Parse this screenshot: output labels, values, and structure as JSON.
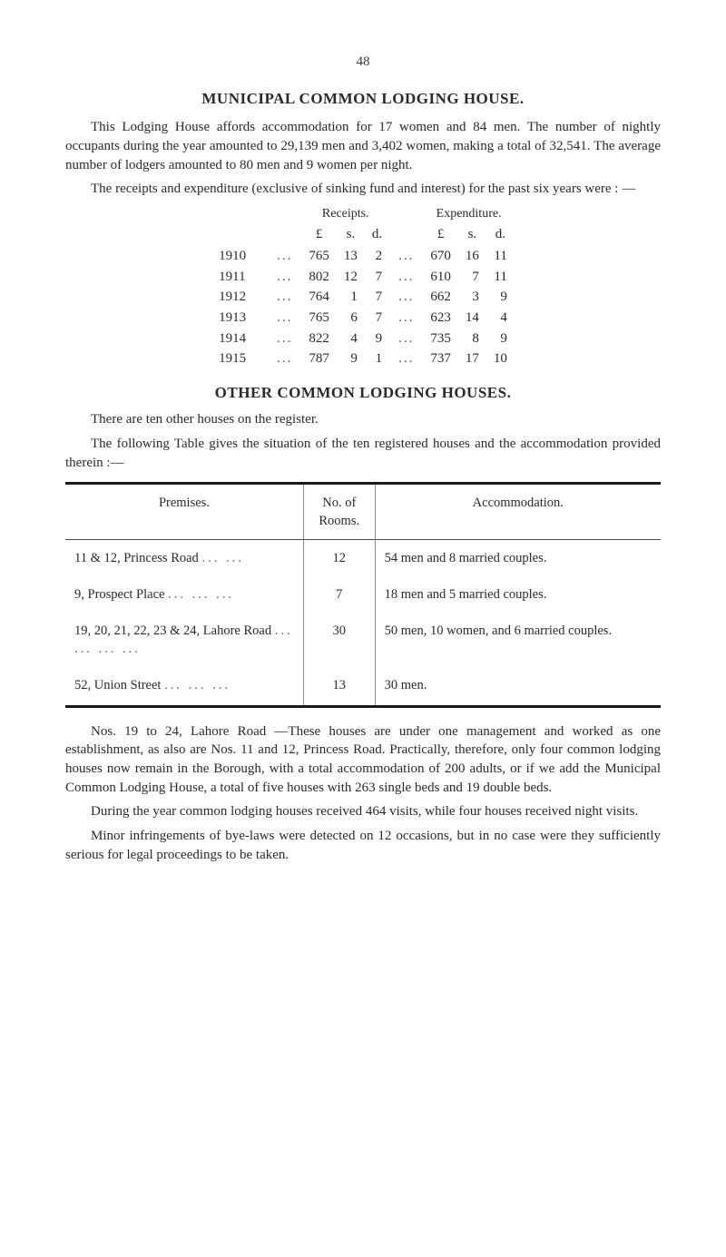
{
  "page": {
    "number": "48"
  },
  "heading1": "MUNICIPAL COMMON LODGING HOUSE.",
  "para1": "This Lodging House affords accommodation for 17 women and 84 men. The number of nightly occupants during the year amounted to 29,139 men and 3,402 women, making a total of 32,541. The average number of lodgers amounted to 80 men and 9 women per night.",
  "para2": "The receipts and expenditure (exclusive of sinking fund and interest) for the past six years were : —",
  "rx": {
    "head_receipts": "Receipts.",
    "head_expenditure": "Expenditure.",
    "unit_L": "£",
    "unit_s": "s.",
    "unit_d": "d.",
    "rows": [
      {
        "year": "1910",
        "rL": "765",
        "rs": "13",
        "rd": "2",
        "eL": "670",
        "es": "16",
        "ed": "11"
      },
      {
        "year": "1911",
        "rL": "802",
        "rs": "12",
        "rd": "7",
        "eL": "610",
        "es": "7",
        "ed": "11"
      },
      {
        "year": "1912",
        "rL": "764",
        "rs": "1",
        "rd": "7",
        "eL": "662",
        "es": "3",
        "ed": "9"
      },
      {
        "year": "1913",
        "rL": "765",
        "rs": "6",
        "rd": "7",
        "eL": "623",
        "es": "14",
        "ed": "4"
      },
      {
        "year": "1914",
        "rL": "822",
        "rs": "4",
        "rd": "9",
        "eL": "735",
        "es": "8",
        "ed": "9"
      },
      {
        "year": "1915",
        "rL": "787",
        "rs": "9",
        "rd": "1",
        "eL": "737",
        "es": "17",
        "ed": "10"
      }
    ]
  },
  "heading2": "OTHER COMMON LODGING HOUSES.",
  "para3": "There are ten other houses on the register.",
  "para4": "The following Table gives the situation of the ten registered houses and the accommodation provided therein :—",
  "premises": {
    "head_prem": "Premises.",
    "head_rooms": "No. of Rooms.",
    "head_acc": "Accommodation.",
    "rows": [
      {
        "prem": "11 & 12, Princess Road",
        "dots": "...   ...",
        "rooms": "12",
        "acc": "54 men and 8 married couples."
      },
      {
        "prem": "9, Prospect Place",
        "dots": "...   ...   ...",
        "rooms": "7",
        "acc": "18 men and 5 married couples."
      },
      {
        "prem": "19, 20, 21, 22, 23 & 24, Lahore Road",
        "dots": "...   ...   ...   ...",
        "rooms": "30",
        "acc": "50 men, 10 women, and 6 married couples."
      },
      {
        "prem": "52, Union Street",
        "dots": "...   ...   ...",
        "rooms": "13",
        "acc": "30 men."
      }
    ]
  },
  "para5": "Nos. 19 to 24, Lahore Road —These houses are under one management and worked as one establishment, as also are Nos. 11 and 12, Princess Road. Practically, therefore, only four common lodging houses now remain in the Borough, with a total accommodation of 200 adults, or if we add the Municipal Common Lodging House, a total of five houses with 263 single beds and 19 double beds.",
  "para6": "During the year common lodging houses received 464 visits, while four houses received night visits.",
  "para7": "Minor infringements of bye-laws were detected on 12 occasions, but in no case were they sufficiently serious for legal proceedings to be taken.",
  "colors": {
    "text": "#2a2a2a",
    "rule_heavy": "#1a1a1a",
    "rule_light": "#888888",
    "background": "#ffffff"
  },
  "typography": {
    "body_pt": 11,
    "heading_pt": 13,
    "font_family": "Georgia / Times-like serif"
  }
}
